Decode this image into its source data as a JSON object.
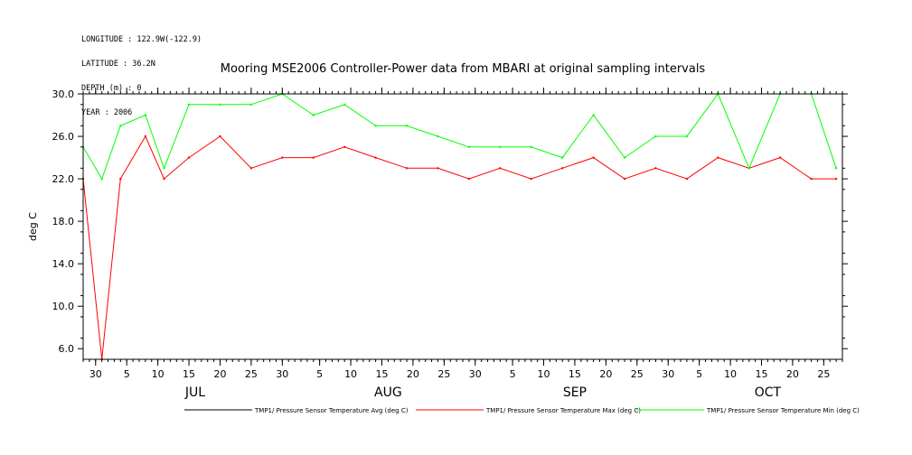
{
  "header": {
    "longitude": "LONGITUDE : 122.9W(-122.9)",
    "latitude": "LATITUDE : 36.2N",
    "depth": "DEPTH (m) : 0",
    "year": "YEAR : 2006"
  },
  "chart_data": {
    "type": "line",
    "title": "Mooring MSE2006 Controller-Power data from MBARI at original sampling intervals",
    "ylabel": "deg C",
    "xlabel": "",
    "ylim": [
      5.0,
      30.0
    ],
    "xlim": [
      "2006-06-28",
      "2006-10-28"
    ],
    "yticks": [
      6.0,
      10.0,
      14.0,
      18.0,
      22.0,
      26.0,
      30.0
    ],
    "ytick_labels": [
      "6.0",
      "10.0",
      "14.0",
      "18.0",
      "22.0",
      "26.0",
      "30.0"
    ],
    "xticks": [
      {
        "date": "2006-06-30",
        "label": "30"
      },
      {
        "date": "2006-07-05",
        "label": "5"
      },
      {
        "date": "2006-07-10",
        "label": "10"
      },
      {
        "date": "2006-07-15",
        "label": "15"
      },
      {
        "date": "2006-07-20",
        "label": "20"
      },
      {
        "date": "2006-07-25",
        "label": "25"
      },
      {
        "date": "2006-07-30",
        "label": "30"
      },
      {
        "date": "2006-08-05",
        "label": "5"
      },
      {
        "date": "2006-08-10",
        "label": "10"
      },
      {
        "date": "2006-08-15",
        "label": "15"
      },
      {
        "date": "2006-08-20",
        "label": "20"
      },
      {
        "date": "2006-08-25",
        "label": "25"
      },
      {
        "date": "2006-08-30",
        "label": "30"
      },
      {
        "date": "2006-09-05",
        "label": "5"
      },
      {
        "date": "2006-09-10",
        "label": "10"
      },
      {
        "date": "2006-09-15",
        "label": "15"
      },
      {
        "date": "2006-09-20",
        "label": "20"
      },
      {
        "date": "2006-09-25",
        "label": "25"
      },
      {
        "date": "2006-09-30",
        "label": "30"
      },
      {
        "date": "2006-10-05",
        "label": "5"
      },
      {
        "date": "2006-10-10",
        "label": "10"
      },
      {
        "date": "2006-10-15",
        "label": "15"
      },
      {
        "date": "2006-10-20",
        "label": "20"
      },
      {
        "date": "2006-10-25",
        "label": "25"
      }
    ],
    "months": [
      {
        "date": "2006-07-16",
        "label": "JUL"
      },
      {
        "date": "2006-08-16",
        "label": "AUG"
      },
      {
        "date": "2006-09-15",
        "label": "SEP"
      },
      {
        "date": "2006-10-16",
        "label": "OCT"
      }
    ],
    "grid": false,
    "legend_position": "bottom",
    "series": [
      {
        "name": "TMP1/ Pressure Sensor Temperature Avg (deg C)",
        "color": "#000000",
        "x": [],
        "y": []
      },
      {
        "name": "TMP1/ Pressure Sensor Temperature Max (deg C)",
        "color": "#ff0000",
        "x": [
          "2006-06-28",
          "2006-07-01",
          "2006-07-04",
          "2006-07-08",
          "2006-07-11",
          "2006-07-15",
          "2006-07-20",
          "2006-07-25",
          "2006-07-30",
          "2006-08-04",
          "2006-08-09",
          "2006-08-14",
          "2006-08-19",
          "2006-08-24",
          "2006-08-29",
          "2006-09-03",
          "2006-09-08",
          "2006-09-13",
          "2006-09-18",
          "2006-09-23",
          "2006-09-28",
          "2006-10-03",
          "2006-10-08",
          "2006-10-13",
          "2006-10-18",
          "2006-10-23",
          "2006-10-27"
        ],
        "y": [
          22,
          5,
          22,
          26,
          22,
          24,
          26,
          23,
          24,
          24,
          25,
          24,
          23,
          23,
          22,
          23,
          22,
          23,
          24,
          22,
          23,
          22,
          24,
          23,
          24,
          22,
          22
        ]
      },
      {
        "name": "TMP1/ Pressure Sensor Temperature Min (deg C)",
        "color": "#00ff00",
        "x": [
          "2006-06-28",
          "2006-07-01",
          "2006-07-04",
          "2006-07-08",
          "2006-07-11",
          "2006-07-15",
          "2006-07-20",
          "2006-07-25",
          "2006-07-30",
          "2006-08-04",
          "2006-08-09",
          "2006-08-14",
          "2006-08-19",
          "2006-08-24",
          "2006-08-29",
          "2006-09-03",
          "2006-09-08",
          "2006-09-13",
          "2006-09-18",
          "2006-09-23",
          "2006-09-28",
          "2006-10-03",
          "2006-10-08",
          "2006-10-13",
          "2006-10-18",
          "2006-10-23",
          "2006-10-27"
        ],
        "y": [
          25,
          22,
          27,
          28,
          23,
          29,
          29,
          29,
          30,
          28,
          29,
          27,
          27,
          26,
          25,
          25,
          25,
          24,
          28,
          24,
          26,
          26,
          30,
          23,
          30,
          30,
          23
        ]
      }
    ]
  }
}
